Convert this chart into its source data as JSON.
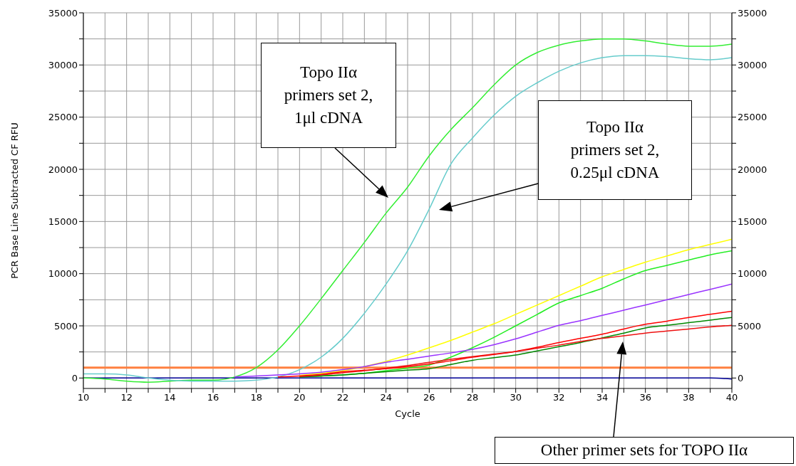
{
  "chart_data": {
    "type": "line",
    "xlabel": "Cycle",
    "ylabel": "PCR Base Line Subtracted CF RFU",
    "x": [
      10,
      11,
      12,
      13,
      14,
      15,
      16,
      17,
      18,
      19,
      20,
      21,
      22,
      23,
      24,
      25,
      26,
      27,
      28,
      29,
      30,
      31,
      32,
      33,
      34,
      35,
      36,
      37,
      38,
      39,
      40
    ],
    "series": [
      {
        "color": "#000099",
        "values": [
          0,
          0,
          0,
          0,
          0,
          0,
          0,
          0,
          0,
          0,
          0,
          0,
          0,
          0,
          0,
          0,
          0,
          0,
          0,
          0,
          0,
          0,
          0,
          0,
          0,
          0,
          0,
          0,
          0,
          0,
          -100
        ]
      },
      {
        "color": "#33ee33",
        "values": [
          0,
          -100,
          -300,
          -400,
          -300,
          -200,
          -200,
          100,
          1000,
          2700,
          5000,
          7600,
          10300,
          13000,
          15800,
          18300,
          21300,
          23800,
          25900,
          28100,
          30000,
          31200,
          31900,
          32300,
          32500,
          32500,
          32300,
          32000,
          31800,
          31800,
          32000
        ]
      },
      {
        "color": "#66cccc",
        "values": [
          400,
          400,
          300,
          0,
          -200,
          -300,
          -300,
          -300,
          -200,
          100,
          800,
          2000,
          3800,
          6200,
          9000,
          12200,
          16200,
          20500,
          23000,
          25200,
          27000,
          28300,
          29400,
          30200,
          30700,
          30900,
          30900,
          30800,
          30600,
          30500,
          30700
        ]
      },
      {
        "color": "#ffff00",
        "values": [
          null,
          null,
          null,
          null,
          null,
          null,
          null,
          null,
          null,
          null,
          250,
          450,
          700,
          1100,
          1600,
          2200,
          2900,
          3600,
          4400,
          5200,
          6100,
          7000,
          7900,
          8800,
          9700,
          10400,
          11100,
          11700,
          12300,
          12800,
          13300
        ]
      },
      {
        "color": "#22ee22",
        "values": [
          null,
          null,
          null,
          null,
          null,
          null,
          null,
          null,
          null,
          null,
          100,
          200,
          300,
          450,
          700,
          950,
          1250,
          2000,
          2900,
          3900,
          5000,
          6100,
          7200,
          7900,
          8600,
          9500,
          10300,
          10800,
          11300,
          11800,
          12200
        ]
      },
      {
        "color": "#9933ff",
        "values": [
          null,
          null,
          null,
          null,
          null,
          null,
          null,
          100,
          200,
          300,
          400,
          550,
          800,
          1100,
          1500,
          1800,
          2100,
          2400,
          2750,
          3200,
          3750,
          4400,
          5050,
          5500,
          6000,
          6500,
          7000,
          7500,
          8000,
          8500,
          9000
        ]
      },
      {
        "color": "#ff0000",
        "values": [
          null,
          null,
          null,
          null,
          null,
          null,
          null,
          null,
          null,
          100,
          200,
          350,
          600,
          750,
          900,
          1100,
          1350,
          1650,
          2000,
          2250,
          2550,
          2950,
          3400,
          3800,
          4200,
          4700,
          5150,
          5450,
          5800,
          6100,
          6400
        ]
      },
      {
        "color": "#008800",
        "values": [
          null,
          null,
          null,
          null,
          null,
          null,
          null,
          null,
          null,
          null,
          100,
          200,
          300,
          450,
          600,
          750,
          900,
          1300,
          1700,
          1950,
          2200,
          2600,
          3000,
          3400,
          3850,
          4300,
          4800,
          5050,
          5300,
          5550,
          5800
        ]
      },
      {
        "color": "#ee1111",
        "values": [
          null,
          null,
          null,
          null,
          null,
          null,
          null,
          null,
          null,
          null,
          150,
          300,
          500,
          700,
          950,
          1200,
          1500,
          1800,
          2050,
          2300,
          2550,
          2850,
          3150,
          3500,
          3800,
          4050,
          4300,
          4500,
          4700,
          4900,
          5050
        ]
      }
    ],
    "xlim": [
      10,
      40
    ],
    "xticks": [
      10,
      {
        "value": 11,
        "label": null
      },
      12,
      {
        "value": 13,
        "label": null
      },
      14,
      {
        "value": 15,
        "label": null
      },
      16,
      {
        "value": 17,
        "label": null
      },
      18,
      {
        "value": 19,
        "label": null
      },
      20,
      {
        "value": 21,
        "label": null
      },
      22,
      {
        "value": 23,
        "label": null
      },
      24,
      {
        "value": 25,
        "label": null
      },
      26,
      {
        "value": 27,
        "label": null
      },
      28,
      {
        "value": 29,
        "label": null
      },
      30,
      {
        "value": 31,
        "label": null
      },
      32,
      {
        "value": 33,
        "label": null
      },
      34,
      {
        "value": 35,
        "label": null
      },
      36,
      {
        "value": 37,
        "label": null
      },
      38,
      {
        "value": 39,
        "label": null
      },
      40
    ],
    "ylim": [
      -1000,
      35000
    ],
    "yticks": [
      0,
      {
        "value": 2500,
        "label": null
      },
      5000,
      {
        "value": 7500,
        "label": null
      },
      10000,
      {
        "value": 12500,
        "label": null
      },
      15000,
      {
        "value": 17500,
        "label": null
      },
      20000,
      {
        "value": 22500,
        "label": null
      },
      25000,
      {
        "value": 27500,
        "label": null
      },
      30000,
      {
        "value": 32500,
        "label": null
      },
      35000
    ],
    "y2lim": [
      -1000,
      35000
    ],
    "y2ticks": [
      0,
      {
        "value": 2500,
        "label": null
      },
      5000,
      {
        "value": 7500,
        "label": null
      },
      10000,
      {
        "value": 12500,
        "label": null
      },
      15000,
      {
        "value": 17500,
        "label": null
      },
      20000,
      {
        "value": 22500,
        "label": null
      },
      25000,
      {
        "value": 27500,
        "label": null
      },
      30000,
      {
        "value": 32500,
        "label": null
      },
      35000
    ],
    "ref_lines": [
      {
        "axis": "y",
        "value": 1000,
        "color": "#ff8040"
      }
    ],
    "grid": true,
    "marker": "none",
    "line_style": "solid",
    "annotations": [
      "Topo IIα\nprimers set 2,\n1μl cDNA",
      "Topo IIα\nprimers set 2,\n0.25μl cDNA",
      "Other primer sets for TOPO IIα"
    ]
  }
}
